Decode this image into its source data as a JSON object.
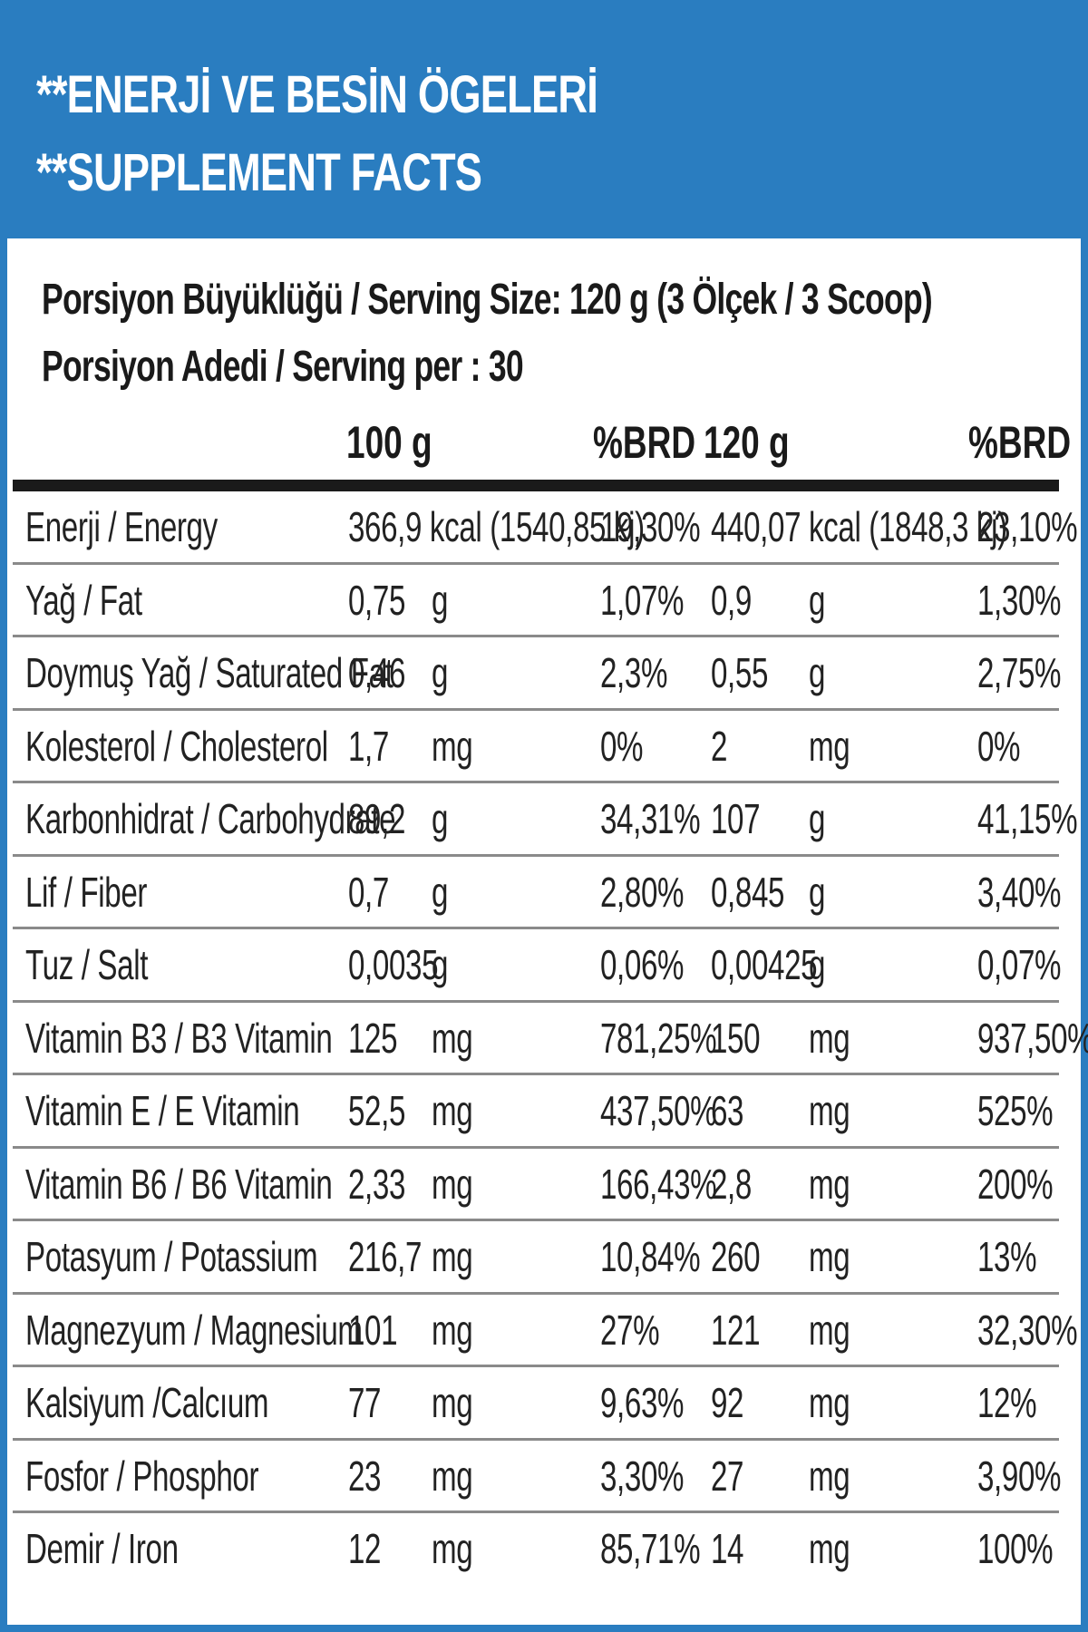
{
  "header": {
    "line1": "**ENERJİ VE BESİN ÖGELERİ",
    "line2": "**SUPPLEMENT FACTS"
  },
  "serving": {
    "size": "Porsiyon Büyüklüğü / Serving Size: 120 g (3 Ölçek / 3 Scoop)",
    "per": "Porsiyon Adedi / Serving per : 30"
  },
  "columns": {
    "amount1": "100 g",
    "brd1": "%BRD",
    "amount2": "120 g",
    "brd2": "%BRD"
  },
  "colors": {
    "brand_blue": "#2a7dc0",
    "text": "#222222"
  },
  "energy": {
    "name": "Enerji / Energy",
    "value1": "366,9 kcal (1540,85 kj)",
    "brd1": "19,30%",
    "value2": "440,07 kcal (1848,3 kj)",
    "brd2": "23,10%"
  },
  "rows": [
    {
      "name": "Yağ / Fat",
      "v1": "0,75",
      "u1": "g",
      "p1": "1,07%",
      "v2": "0,9",
      "u2": "g",
      "p2": "1,30%"
    },
    {
      "name": "Doymuş Yağ / Saturated Fat",
      "v1": "0,46",
      "u1": "g",
      "p1": "2,3%",
      "v2": "0,55",
      "u2": "g",
      "p2": "2,75%"
    },
    {
      "name": "Kolesterol / Cholesterol",
      "v1": "1,7",
      "u1": "mg",
      "p1": "0%",
      "v2": "2",
      "u2": "mg",
      "p2": "0%"
    },
    {
      "name": "Karbonhidrat / Carbohydrate",
      "v1": "89,2",
      "u1": "g",
      "p1": "34,31%",
      "v2": "107",
      "u2": "g",
      "p2": "41,15%"
    },
    {
      "name": "Lif / Fiber",
      "v1": "0,7",
      "u1": "g",
      "p1": "2,80%",
      "v2": "0,845",
      "u2": "g",
      "p2": "3,40%"
    },
    {
      "name": "Tuz / Salt",
      "v1": "0,0035",
      "u1": "g",
      "p1": "0,06%",
      "v2": "0,00425",
      "u2": "g",
      "p2": "0,07%"
    },
    {
      "name": "Vitamin B3 / B3 Vitamin",
      "v1": "125",
      "u1": "mg",
      "p1": "781,25%",
      "v2": "150",
      "u2": "mg",
      "p2": "937,50%"
    },
    {
      "name": "Vitamin E / E Vitamin",
      "v1": "52,5",
      "u1": "mg",
      "p1": "437,50%",
      "v2": "63",
      "u2": "mg",
      "p2": "525%"
    },
    {
      "name": "Vitamin B6 / B6 Vitamin",
      "v1": "2,33",
      "u1": "mg",
      "p1": "166,43%",
      "v2": "2,8",
      "u2": "mg",
      "p2": "200%"
    },
    {
      "name": "Potasyum / Potassium",
      "v1": "216,7",
      "u1": "mg",
      "p1": "10,84%",
      "v2": "260",
      "u2": "mg",
      "p2": "13%"
    },
    {
      "name": "Magnezyum / Magnesium",
      "v1": "101",
      "u1": "mg",
      "p1": "27%",
      "v2": "121",
      "u2": "mg",
      "p2": "32,30%"
    },
    {
      "name": "Kalsiyum /Calcıum",
      "v1": "77",
      "u1": "mg",
      "p1": "9,63%",
      "v2": "92",
      "u2": "mg",
      "p2": "12%"
    },
    {
      "name": "Fosfor / Phosphor",
      "v1": "23",
      "u1": "mg",
      "p1": "3,30%",
      "v2": "27",
      "u2": "mg",
      "p2": "3,90%"
    },
    {
      "name": "Demir / Iron",
      "v1": "12",
      "u1": "mg",
      "p1": "85,71%",
      "v2": "14",
      "u2": "mg",
      "p2": "100%"
    }
  ]
}
